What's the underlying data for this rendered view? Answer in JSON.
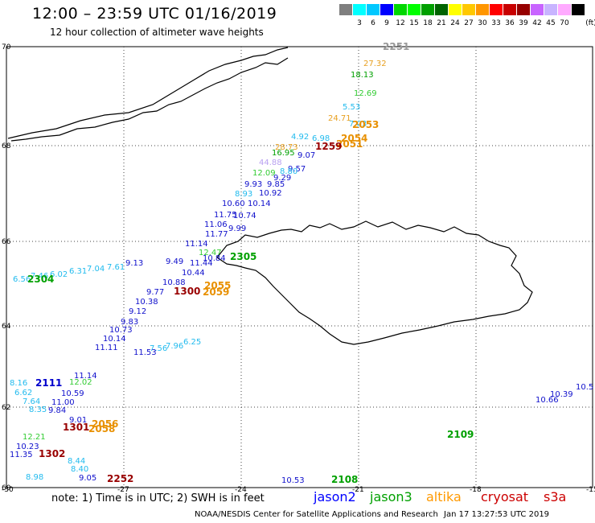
{
  "header": {
    "title": "12:00 – 23:59 UTC 01/16/2019",
    "subtitle": "12 hour collection of altimeter wave heights"
  },
  "legend": {
    "unit": "(ft)",
    "entries": [
      {
        "label": "",
        "color": "#7f7f7f"
      },
      {
        "label": "3",
        "color": "#00ffff"
      },
      {
        "label": "6",
        "color": "#00c8ff"
      },
      {
        "label": "9",
        "color": "#0000ff"
      },
      {
        "label": "12",
        "color": "#00d700"
      },
      {
        "label": "15",
        "color": "#00ff00"
      },
      {
        "label": "18",
        "color": "#00a000"
      },
      {
        "label": "21",
        "color": "#006400"
      },
      {
        "label": "24",
        "color": "#ffff00"
      },
      {
        "label": "27",
        "color": "#ffc800"
      },
      {
        "label": "30",
        "color": "#ff9600"
      },
      {
        "label": "33",
        "color": "#ff0000"
      },
      {
        "label": "36",
        "color": "#c80000"
      },
      {
        "label": "39",
        "color": "#960000"
      },
      {
        "label": "42",
        "color": "#c864ff"
      },
      {
        "label": "45",
        "color": "#c8b4ff"
      },
      {
        "label": "70",
        "color": "#ffaaff"
      },
      {
        "label": "",
        "color": "#000000"
      }
    ]
  },
  "axes": {
    "x_ticks": [
      "-30",
      "-27",
      "-24",
      "-21",
      "-18",
      "-15"
    ],
    "y_ticks": [
      "70",
      "68",
      "66",
      "64",
      "62",
      "60"
    ]
  },
  "map_data": {
    "track_labels": [
      {
        "text": "2251",
        "color": "#999999"
      },
      {
        "text": "27.32",
        "color": "#e8a020"
      },
      {
        "text": "18.13",
        "color": "#00a000"
      },
      {
        "text": "12.69",
        "color": "#33cc33"
      },
      {
        "text": "5.53",
        "color": "#22bbee"
      },
      {
        "text": "24.71",
        "color": "#e8a020"
      },
      {
        "text": "7.03",
        "color": "#22bbee"
      },
      {
        "text": "2053",
        "color": "#e89000"
      },
      {
        "text": "4.92",
        "color": "#22bbee"
      },
      {
        "text": "6.98",
        "color": "#22bbee"
      },
      {
        "text": "2054",
        "color": "#e89000"
      },
      {
        "text": "28.73",
        "color": "#e8a020"
      },
      {
        "text": "2051",
        "color": "#e89000"
      },
      {
        "text": "1259",
        "color": "#990000"
      },
      {
        "text": "16.95",
        "color": "#00a000"
      },
      {
        "text": "9.07",
        "color": "#1010cc"
      },
      {
        "text": "44.88",
        "color": "#b8a0f0"
      },
      {
        "text": "9.57",
        "color": "#1010cc"
      },
      {
        "text": "12.09",
        "color": "#33cc33"
      },
      {
        "text": "8.80",
        "color": "#22bbee"
      },
      {
        "text": "9.29",
        "color": "#1010cc"
      },
      {
        "text": "9.93",
        "color": "#1010cc"
      },
      {
        "text": "9.85",
        "color": "#1010cc"
      },
      {
        "text": "8.93",
        "color": "#22bbee"
      },
      {
        "text": "10.92",
        "color": "#1010cc"
      },
      {
        "text": "10.60",
        "color": "#1010cc"
      },
      {
        "text": "10.14",
        "color": "#1010cc"
      },
      {
        "text": "11.75",
        "color": "#1010cc"
      },
      {
        "text": "10.74",
        "color": "#1010cc"
      },
      {
        "text": "11.06",
        "color": "#1010cc"
      },
      {
        "text": "9.99",
        "color": "#1010cc"
      },
      {
        "text": "11.77",
        "color": "#1010cc"
      },
      {
        "text": "11.14",
        "color": "#1010cc"
      },
      {
        "text": "12.47",
        "color": "#33cc33"
      },
      {
        "text": "2305",
        "color": "#00a000"
      },
      {
        "text": "10.84",
        "color": "#1010cc"
      },
      {
        "text": "9.49",
        "color": "#1010cc"
      },
      {
        "text": "9.13",
        "color": "#1010cc"
      },
      {
        "text": "7.61",
        "color": "#22bbee"
      },
      {
        "text": "7.04",
        "color": "#22bbee"
      },
      {
        "text": "6.31",
        "color": "#22bbee"
      },
      {
        "text": "6.02",
        "color": "#22bbee"
      },
      {
        "text": "7.46",
        "color": "#22bbee"
      },
      {
        "text": "6.56",
        "color": "#22bbee"
      },
      {
        "text": "2304",
        "color": "#00a000"
      },
      {
        "text": "11.44",
        "color": "#1010cc"
      },
      {
        "text": "10.44",
        "color": "#1010cc"
      },
      {
        "text": "10.88",
        "color": "#1010cc"
      },
      {
        "text": "9.77",
        "color": "#1010cc"
      },
      {
        "text": "1300",
        "color": "#990000"
      },
      {
        "text": "2055",
        "color": "#e89000"
      },
      {
        "text": "2059",
        "color": "#e89000"
      },
      {
        "text": "10.38",
        "color": "#1010cc"
      },
      {
        "text": "9.12",
        "color": "#1010cc"
      },
      {
        "text": "9.83",
        "color": "#1010cc"
      },
      {
        "text": "10.73",
        "color": "#1010cc"
      },
      {
        "text": "10.14",
        "color": "#1010cc"
      },
      {
        "text": "6.25",
        "color": "#22bbee"
      },
      {
        "text": "7.96",
        "color": "#22bbee"
      },
      {
        "text": "7.56",
        "color": "#22bbee"
      },
      {
        "text": "11.11",
        "color": "#1010cc"
      },
      {
        "text": "11.53",
        "color": "#1010cc"
      },
      {
        "text": "11.14",
        "color": "#1010cc"
      },
      {
        "text": "8.16",
        "color": "#22bbee"
      },
      {
        "text": "2111",
        "color": "#0000cc"
      },
      {
        "text": "12.02",
        "color": "#33cc33"
      },
      {
        "text": "10.59",
        "color": "#1010cc"
      },
      {
        "text": "7.64",
        "color": "#22bbee"
      },
      {
        "text": "6.62",
        "color": "#22bbee"
      },
      {
        "text": "11.00",
        "color": "#1010cc"
      },
      {
        "text": "8.35",
        "color": "#22bbee"
      },
      {
        "text": "9.84",
        "color": "#1010cc"
      },
      {
        "text": "9.01",
        "color": "#1010cc"
      },
      {
        "text": "2056",
        "color": "#e89000"
      },
      {
        "text": "2058",
        "color": "#e89000"
      },
      {
        "text": "1301",
        "color": "#990000"
      },
      {
        "text": "12.21",
        "color": "#33cc33"
      },
      {
        "text": "10.23",
        "color": "#1010cc"
      },
      {
        "text": "11.35",
        "color": "#1010cc"
      },
      {
        "text": "1302",
        "color": "#990000"
      },
      {
        "text": "8.44",
        "color": "#22bbee"
      },
      {
        "text": "8.40",
        "color": "#22bbee"
      },
      {
        "text": "9.05",
        "color": "#1010cc"
      },
      {
        "text": "8.98",
        "color": "#22bbee"
      },
      {
        "text": "2252",
        "color": "#990000"
      },
      {
        "text": "10.53",
        "color": "#1010cc"
      },
      {
        "text": "2108",
        "color": "#00a000"
      },
      {
        "text": "2109",
        "color": "#00a000"
      },
      {
        "text": "10.66",
        "color": "#1010cc"
      },
      {
        "text": "10.39",
        "color": "#1010cc"
      },
      {
        "text": "10.5",
        "color": "#1010cc"
      }
    ]
  },
  "footer": {
    "note": "note:  1) Time is in UTC;  2) SWH is in feet",
    "satellites": [
      {
        "name": "jason2",
        "color": "#0000ff"
      },
      {
        "name": "jason3",
        "color": "#00a000"
      },
      {
        "name": "altika",
        "color": "#ff9900"
      },
      {
        "name": "cryosat",
        "color": "#cc0000"
      },
      {
        "name": "s3a",
        "color": "#cc0000"
      }
    ],
    "credit": "NOAA/NESDIS Center for Satellite Applications and Research",
    "timestamp": "Jan 17 13:27:53 UTC 2019"
  }
}
